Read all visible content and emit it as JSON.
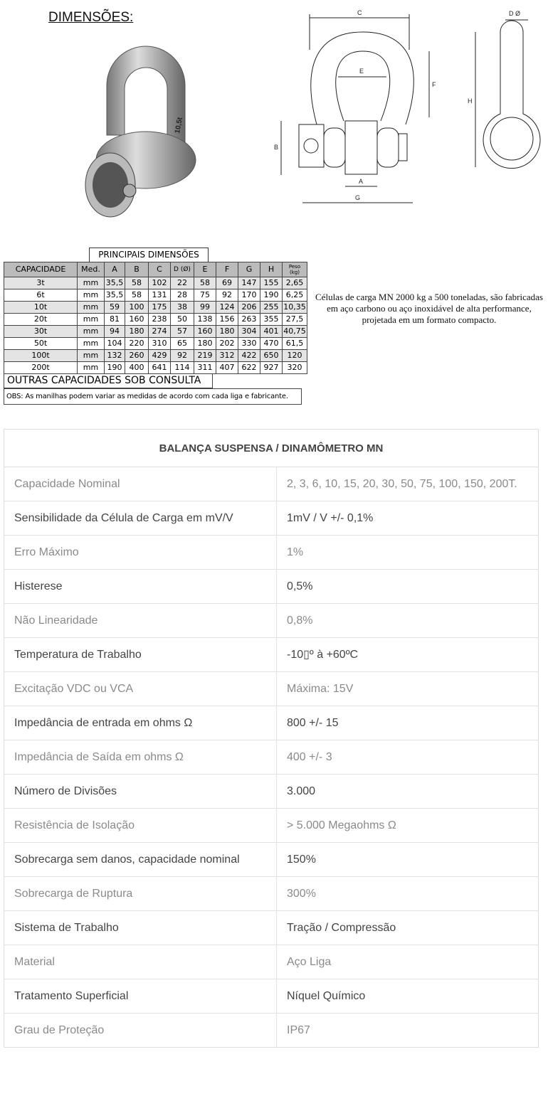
{
  "title": "DIMENSÕES:",
  "photo": {
    "marking": "10,5t"
  },
  "diagram": {
    "labels": [
      "C",
      "E",
      "F",
      "B",
      "A",
      "G",
      "D Ø",
      "H"
    ]
  },
  "dimensions": {
    "heading": "PRINCIPAIS DIMENSÕES",
    "columns": [
      "CAPACIDADE",
      "Med.",
      "A",
      "B",
      "C",
      "D (Ø)",
      "E",
      "F",
      "G",
      "H",
      "Peso (kg)"
    ],
    "rows": [
      [
        "3t",
        "mm",
        "35,5",
        "58",
        "102",
        "22",
        "58",
        "69",
        "147",
        "155",
        "2,65"
      ],
      [
        "6t",
        "mm",
        "35,5",
        "58",
        "131",
        "28",
        "75",
        "92",
        "170",
        "190",
        "6,25"
      ],
      [
        "10t",
        "mm",
        "59",
        "100",
        "175",
        "38",
        "99",
        "124",
        "206",
        "255",
        "10,35"
      ],
      [
        "20t",
        "mm",
        "81",
        "160",
        "238",
        "50",
        "138",
        "156",
        "263",
        "355",
        "27,5"
      ],
      [
        "30t",
        "mm",
        "94",
        "180",
        "274",
        "57",
        "160",
        "180",
        "304",
        "401",
        "40,75"
      ],
      [
        "50t",
        "mm",
        "104",
        "220",
        "310",
        "65",
        "180",
        "202",
        "330",
        "470",
        "61,5"
      ],
      [
        "100t",
        "mm",
        "132",
        "260",
        "429",
        "92",
        "219",
        "312",
        "422",
        "650",
        "120"
      ],
      [
        "200t",
        "mm",
        "190",
        "400",
        "641",
        "114",
        "311",
        "407",
        "622",
        "927",
        "320"
      ]
    ],
    "other": "OUTRAS CAPACIDADES SOB CONSULTA",
    "obs": "OBS: As manilhas podem variar as medidas de acordo com cada liga e fabricante."
  },
  "description": "Células de carga MN 2000 kg a 500 toneladas, são fabricadas em aço carbono ou aço inoxidável de alta performance, projetada em um formato compacto.",
  "spec": {
    "title": "BALANÇA SUSPENSA / DINAMÔMETRO MN",
    "rows": [
      [
        "Capacidade Nominal",
        "2, 3, 6, 10, 15, 20, 30, 50, 75, 100, 150, 200T."
      ],
      [
        "Sensibilidade da Célula de Carga em mV/V",
        "1mV / V +/- 0,1%"
      ],
      [
        "Erro Máximo",
        "1%"
      ],
      [
        "Histerese",
        "0,5%"
      ],
      [
        "Não Linearidade",
        "0,8%"
      ],
      [
        "Temperatura de Trabalho",
        "-10▯º à +60ºC"
      ],
      [
        "Excitação VDC ou VCA",
        "Máxima: 15V"
      ],
      [
        "Impedância de entrada em ohms Ω",
        "800 +/- 15"
      ],
      [
        "Impedância de Saída em ohms Ω",
        "400 +/- 3"
      ],
      [
        "Número de Divisões",
        "3.000"
      ],
      [
        "Resistência de Isolação",
        "> 5.000 Megaohms Ω"
      ],
      [
        "Sobrecarga sem danos, capacidade nominal",
        "150%"
      ],
      [
        "Sobrecarga de Ruptura",
        "300%"
      ],
      [
        "Sistema de Trabalho",
        "Tração / Compressão"
      ],
      [
        "Material",
        "Aço Liga"
      ],
      [
        "Tratamento Superficial",
        "Níquel Químico"
      ],
      [
        "Grau de Proteção",
        "IP67"
      ]
    ]
  }
}
